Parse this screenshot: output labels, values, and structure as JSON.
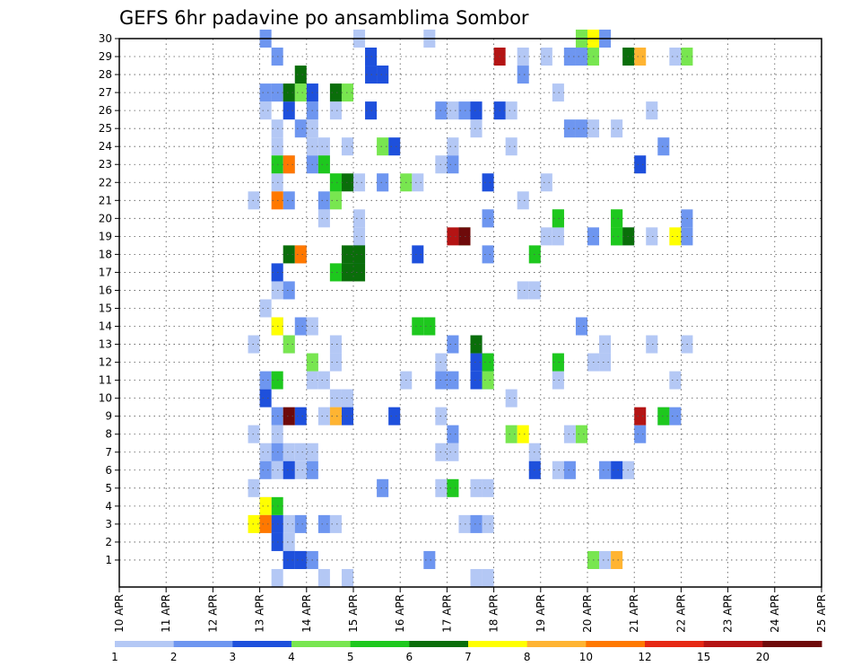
{
  "chart_data": {
    "type": "heatmap",
    "title": "GEFS 6hr padavine po ansamblima Sombor",
    "xlabel": "",
    "ylabel": "",
    "x_start_day": 10,
    "x_end_day": 25,
    "step_hours": 6,
    "y_labels": [
      "30",
      "29",
      "28",
      "27",
      "26",
      "25",
      "24",
      "23",
      "22",
      "21",
      "20",
      "19",
      "18",
      "17",
      "16",
      "15",
      "14",
      "13",
      "12",
      "11",
      "10",
      "9",
      "8",
      "7",
      "6",
      "5",
      "4",
      "3",
      "2",
      "1"
    ],
    "x_tick_labels": [
      "10 APR",
      "11 APR",
      "12 APR",
      "13 APR",
      "14 APR",
      "15 APR",
      "16 APR",
      "17 APR",
      "18 APR",
      "19 APR",
      "20 APR",
      "21 APR",
      "22 APR",
      "23 APR",
      "24 APR",
      "25 APR"
    ],
    "legend": {
      "labels": [
        "1",
        "2",
        "3",
        "4",
        "5",
        "6",
        "7",
        "8",
        "10",
        "12",
        "15",
        "20"
      ],
      "colors": [
        "#b4c8f5",
        "#6e96f0",
        "#1e50dc",
        "#78e650",
        "#1ec81e",
        "#0a6e0a",
        "#ffff00",
        "#ffb432",
        "#ff7800",
        "#e62814",
        "#b41414",
        "#6e0a0a"
      ]
    },
    "levels": [
      {
        "color": "#b4c8f5",
        "cells": [
          [
            30,
            20
          ],
          [
            30,
            26
          ],
          [
            29,
            34
          ],
          [
            29,
            36
          ],
          [
            29,
            38
          ],
          [
            29,
            47
          ],
          [
            28,
            21
          ],
          [
            27,
            13
          ],
          [
            27,
            16
          ],
          [
            27,
            37
          ],
          [
            26,
            12
          ],
          [
            26,
            18
          ],
          [
            26,
            28
          ],
          [
            26,
            33
          ],
          [
            26,
            45
          ],
          [
            25,
            13
          ],
          [
            25,
            16
          ],
          [
            25,
            30
          ],
          [
            25,
            40
          ],
          [
            25,
            42
          ],
          [
            24,
            13
          ],
          [
            24,
            16
          ],
          [
            24,
            17
          ],
          [
            24,
            19
          ],
          [
            24,
            28
          ],
          [
            24,
            33
          ],
          [
            23,
            14
          ],
          [
            23,
            17
          ],
          [
            23,
            27
          ],
          [
            22,
            13
          ],
          [
            22,
            20
          ],
          [
            22,
            22
          ],
          [
            22,
            25
          ],
          [
            22,
            31
          ],
          [
            22,
            36
          ],
          [
            21,
            11
          ],
          [
            21,
            34
          ],
          [
            20,
            17
          ],
          [
            20,
            20
          ],
          [
            20,
            31
          ],
          [
            20,
            37
          ],
          [
            19,
            20
          ],
          [
            19,
            29
          ],
          [
            19,
            36
          ],
          [
            19,
            37
          ],
          [
            19,
            42
          ],
          [
            19,
            43
          ],
          [
            19,
            45
          ],
          [
            18,
            15
          ],
          [
            17,
            13
          ],
          [
            16,
            13
          ],
          [
            16,
            34
          ],
          [
            16,
            35
          ],
          [
            15,
            12
          ],
          [
            14,
            16
          ],
          [
            13,
            11
          ],
          [
            13,
            14
          ],
          [
            13,
            18
          ],
          [
            13,
            41
          ],
          [
            13,
            45
          ],
          [
            13,
            48
          ],
          [
            12,
            16
          ],
          [
            12,
            18
          ],
          [
            12,
            27
          ],
          [
            12,
            37
          ],
          [
            12,
            40
          ],
          [
            12,
            41
          ],
          [
            11,
            16
          ],
          [
            11,
            17
          ],
          [
            11,
            24
          ],
          [
            11,
            37
          ],
          [
            11,
            47
          ],
          [
            10,
            18
          ],
          [
            10,
            19
          ],
          [
            10,
            33
          ],
          [
            9,
            17
          ],
          [
            9,
            18
          ],
          [
            9,
            27
          ],
          [
            9,
            46
          ],
          [
            8,
            11
          ],
          [
            8,
            13
          ],
          [
            8,
            38
          ],
          [
            7,
            12
          ],
          [
            7,
            14
          ],
          [
            7,
            16
          ],
          [
            7,
            15
          ],
          [
            7,
            27
          ],
          [
            7,
            28
          ],
          [
            7,
            35
          ],
          [
            6,
            13
          ],
          [
            6,
            15
          ],
          [
            6,
            37
          ],
          [
            6,
            43
          ],
          [
            5,
            11
          ],
          [
            5,
            27
          ],
          [
            5,
            30
          ],
          [
            5,
            31
          ],
          [
            4,
            12
          ],
          [
            3,
            14
          ],
          [
            3,
            18
          ],
          [
            3,
            29
          ],
          [
            3,
            31
          ],
          [
            2,
            14
          ],
          [
            1,
            41
          ],
          [
            0,
            13
          ],
          [
            0,
            17
          ],
          [
            0,
            19
          ],
          [
            0,
            30
          ],
          [
            0,
            31
          ]
        ]
      },
      {
        "color": "#6e96f0",
        "cells": [
          [
            30,
            12
          ],
          [
            30,
            41
          ],
          [
            29,
            13
          ],
          [
            29,
            21
          ],
          [
            29,
            38
          ],
          [
            29,
            39
          ],
          [
            28,
            22
          ],
          [
            28,
            34
          ],
          [
            27,
            12
          ],
          [
            27,
            13
          ],
          [
            26,
            16
          ],
          [
            26,
            27
          ],
          [
            26,
            29
          ],
          [
            25,
            15
          ],
          [
            25,
            38
          ],
          [
            25,
            39
          ],
          [
            24,
            46
          ],
          [
            23,
            16
          ],
          [
            23,
            28
          ],
          [
            22,
            22
          ],
          [
            21,
            14
          ],
          [
            21,
            17
          ],
          [
            20,
            31
          ],
          [
            20,
            48
          ],
          [
            19,
            40
          ],
          [
            19,
            48
          ],
          [
            18,
            31
          ],
          [
            16,
            14
          ],
          [
            14,
            13
          ],
          [
            14,
            15
          ],
          [
            14,
            39
          ],
          [
            13,
            28
          ],
          [
            12,
            31
          ],
          [
            11,
            12
          ],
          [
            11,
            27
          ],
          [
            11,
            28
          ],
          [
            11,
            31
          ],
          [
            9,
            13
          ],
          [
            9,
            47
          ],
          [
            8,
            28
          ],
          [
            8,
            44
          ],
          [
            7,
            13
          ],
          [
            6,
            12
          ],
          [
            6,
            16
          ],
          [
            6,
            38
          ],
          [
            6,
            41
          ],
          [
            5,
            22
          ],
          [
            3,
            13
          ],
          [
            3,
            15
          ],
          [
            3,
            17
          ],
          [
            3,
            30
          ],
          [
            1,
            14
          ],
          [
            1,
            15
          ],
          [
            1,
            16
          ],
          [
            1,
            26
          ]
        ]
      },
      {
        "color": "#1e50dc",
        "cells": [
          [
            29,
            21
          ],
          [
            28,
            21
          ],
          [
            28,
            22
          ],
          [
            27,
            16
          ],
          [
            26,
            14
          ],
          [
            26,
            21
          ],
          [
            26,
            30
          ],
          [
            26,
            32
          ],
          [
            24,
            23
          ],
          [
            23,
            44
          ],
          [
            22,
            31
          ],
          [
            18,
            25
          ],
          [
            18,
            20
          ],
          [
            17,
            13
          ],
          [
            13,
            30
          ],
          [
            12,
            30
          ],
          [
            11,
            30
          ],
          [
            10,
            12
          ],
          [
            9,
            15
          ],
          [
            9,
            19
          ],
          [
            9,
            23
          ],
          [
            6,
            14
          ],
          [
            6,
            35
          ],
          [
            6,
            42
          ],
          [
            3,
            13
          ],
          [
            2,
            13
          ],
          [
            1,
            14
          ],
          [
            1,
            15
          ]
        ]
      },
      {
        "color": "#78e650",
        "cells": [
          [
            30,
            39
          ],
          [
            29,
            40
          ],
          [
            29,
            48
          ],
          [
            27,
            15
          ],
          [
            27,
            19
          ],
          [
            24,
            22
          ],
          [
            22,
            18
          ],
          [
            22,
            24
          ],
          [
            21,
            18
          ],
          [
            20,
            37
          ],
          [
            20,
            42
          ],
          [
            19,
            29
          ],
          [
            19,
            42
          ],
          [
            17,
            18
          ],
          [
            17,
            20
          ],
          [
            13,
            14
          ],
          [
            12,
            16
          ],
          [
            11,
            31
          ],
          [
            8,
            33
          ],
          [
            8,
            39
          ],
          [
            1,
            40
          ]
        ]
      },
      {
        "color": "#1ec81e",
        "cells": [
          [
            23,
            13
          ],
          [
            23,
            17
          ],
          [
            22,
            18
          ],
          [
            20,
            37
          ],
          [
            20,
            42
          ],
          [
            19,
            42
          ],
          [
            18,
            35
          ],
          [
            17,
            18
          ],
          [
            14,
            25
          ],
          [
            14,
            26
          ],
          [
            12,
            31
          ],
          [
            12,
            37
          ],
          [
            11,
            13
          ],
          [
            9,
            46
          ],
          [
            5,
            28
          ],
          [
            4,
            13
          ]
        ]
      },
      {
        "color": "#0a6e0a",
        "cells": [
          [
            29,
            43
          ],
          [
            28,
            15
          ],
          [
            27,
            14
          ],
          [
            27,
            18
          ],
          [
            22,
            19
          ],
          [
            19,
            43
          ],
          [
            18,
            14
          ],
          [
            18,
            19
          ],
          [
            18,
            20
          ],
          [
            17,
            19
          ],
          [
            17,
            20
          ],
          [
            13,
            30
          ]
        ]
      },
      {
        "color": "#ffff00",
        "cells": [
          [
            30,
            40
          ],
          [
            19,
            47
          ],
          [
            14,
            13
          ],
          [
            8,
            34
          ],
          [
            4,
            12
          ],
          [
            3,
            11
          ]
        ]
      },
      {
        "color": "#ffb432",
        "cells": [
          [
            29,
            44
          ],
          [
            9,
            18
          ],
          [
            1,
            42
          ]
        ]
      },
      {
        "color": "#ff7800",
        "cells": [
          [
            23,
            14
          ],
          [
            21,
            13
          ],
          [
            18,
            15
          ],
          [
            3,
            12
          ]
        ]
      },
      {
        "color": "#b41414",
        "cells": [
          [
            29,
            32
          ],
          [
            19,
            28
          ],
          [
            9,
            44
          ]
        ]
      },
      {
        "color": "#6e0a0a",
        "cells": [
          [
            19,
            29
          ],
          [
            9,
            14
          ]
        ]
      }
    ]
  }
}
